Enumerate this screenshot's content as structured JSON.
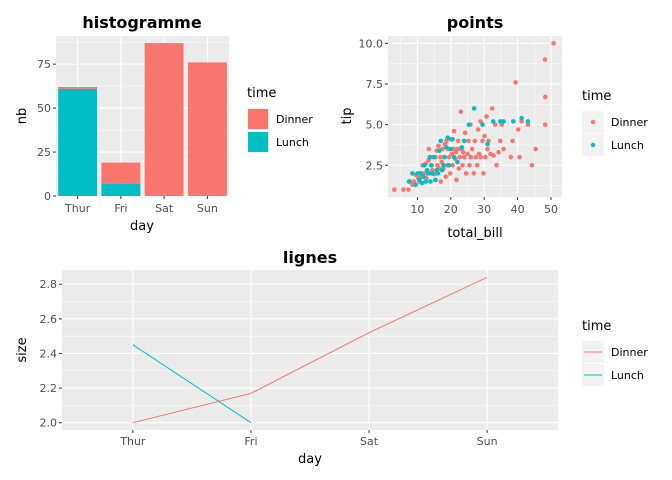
{
  "colors": {
    "Dinner": "#F8766D",
    "Lunch": "#00BFC4",
    "panel": "#EBEBEB",
    "grid": "#FFFFFF"
  },
  "chart_data": [
    {
      "type": "bar",
      "title": "histogramme",
      "xlabel": "day",
      "ylabel": "nb",
      "categories": [
        "Thur",
        "Fri",
        "Sat",
        "Sun"
      ],
      "series": [
        {
          "name": "Dinner",
          "values": [
            1,
            12,
            87,
            76
          ]
        },
        {
          "name": "Lunch",
          "values": [
            61,
            7,
            0,
            0
          ]
        }
      ],
      "stacked": true,
      "ylim": [
        0,
        91
      ],
      "yticks": [
        0,
        25,
        50,
        75
      ],
      "legend": {
        "title": "time",
        "position": "right",
        "entries": [
          "Dinner",
          "Lunch"
        ]
      }
    },
    {
      "type": "scatter",
      "title": "points",
      "xlabel": "total_bill",
      "ylabel": "tip",
      "xlim": [
        1.2,
        53.3
      ],
      "ylim": [
        0.55,
        10.45
      ],
      "xticks": [
        10,
        20,
        30,
        40,
        50
      ],
      "yticks": [
        2.5,
        5.0,
        7.5,
        10.0
      ],
      "ytick_labels": [
        "2.5",
        "5.0",
        "7.5",
        "10.0"
      ],
      "series": [
        {
          "name": "Dinner",
          "points": [
            [
              3.1,
              1.0
            ],
            [
              5.8,
              1.0
            ],
            [
              7.3,
              1.0
            ],
            [
              7.8,
              1.5
            ],
            [
              8.5,
              1.3
            ],
            [
              9.0,
              1.5
            ],
            [
              9.6,
              1.9
            ],
            [
              10.3,
              1.7
            ],
            [
              10.6,
              1.5
            ],
            [
              10.9,
              2.0
            ],
            [
              11.2,
              1.8
            ],
            [
              11.6,
              2.5
            ],
            [
              12.0,
              2.0
            ],
            [
              12.5,
              2.6
            ],
            [
              12.7,
              1.7
            ],
            [
              13.0,
              2.0
            ],
            [
              13.3,
              2.8
            ],
            [
              13.4,
              3.5
            ],
            [
              13.8,
              2.0
            ],
            [
              14.0,
              3.0
            ],
            [
              14.3,
              2.5
            ],
            [
              14.5,
              2.2
            ],
            [
              14.8,
              3.0
            ],
            [
              15.0,
              1.96
            ],
            [
              15.4,
              3.0
            ],
            [
              15.7,
              2.0
            ],
            [
              15.8,
              3.4
            ],
            [
              16.0,
              2.5
            ],
            [
              16.3,
              3.7
            ],
            [
              16.5,
              2.3
            ],
            [
              16.9,
              3.0
            ],
            [
              17.0,
              1.5
            ],
            [
              17.3,
              2.7
            ],
            [
              17.5,
              3.5
            ],
            [
              17.8,
              2.3
            ],
            [
              18.0,
              3.0
            ],
            [
              18.3,
              3.8
            ],
            [
              18.5,
              1.8
            ],
            [
              18.7,
              4.0
            ],
            [
              19.0,
              2.5
            ],
            [
              19.3,
              3.5
            ],
            [
              19.5,
              3.0
            ],
            [
              19.8,
              2.0
            ],
            [
              20.0,
              4.1
            ],
            [
              20.3,
              3.2
            ],
            [
              20.6,
              2.5
            ],
            [
              20.9,
              3.5
            ],
            [
              21.0,
              4.6
            ],
            [
              21.3,
              2.9
            ],
            [
              21.5,
              3.3
            ],
            [
              21.7,
              1.6
            ],
            [
              22.0,
              3.5
            ],
            [
              22.2,
              4.0
            ],
            [
              22.4,
              2.3
            ],
            [
              22.7,
              3.0
            ],
            [
              23.0,
              5.8
            ],
            [
              23.2,
              3.5
            ],
            [
              23.5,
              2.5
            ],
            [
              23.7,
              3.3
            ],
            [
              24.0,
              3.0
            ],
            [
              24.3,
              4.5
            ],
            [
              24.6,
              2.0
            ],
            [
              25.0,
              3.2
            ],
            [
              25.3,
              4.0
            ],
            [
              25.6,
              2.5
            ],
            [
              25.9,
              5.0
            ],
            [
              26.0,
              3.0
            ],
            [
              26.4,
              3.5
            ],
            [
              26.9,
              2.0
            ],
            [
              27.2,
              4.0
            ],
            [
              27.5,
              3.0
            ],
            [
              27.9,
              2.5
            ],
            [
              28.2,
              4.7
            ],
            [
              28.5,
              3.2
            ],
            [
              28.9,
              5.2
            ],
            [
              29.0,
              3.0
            ],
            [
              29.5,
              4.0
            ],
            [
              29.8,
              2.0
            ],
            [
              30.1,
              4.3
            ],
            [
              30.4,
              3.0
            ],
            [
              30.7,
              5.5
            ],
            [
              31.0,
              3.5
            ],
            [
              31.3,
              4.0
            ],
            [
              31.9,
              3.2
            ],
            [
              32.4,
              6.0
            ],
            [
              32.8,
              3.1
            ],
            [
              33.3,
              5.0
            ],
            [
              33.7,
              2.5
            ],
            [
              34.3,
              3.3
            ],
            [
              34.8,
              4.0
            ],
            [
              35.3,
              5.0
            ],
            [
              35.8,
              3.5
            ],
            [
              38.0,
              3.0
            ],
            [
              38.5,
              4.0
            ],
            [
              39.4,
              7.6
            ],
            [
              40.2,
              4.7
            ],
            [
              40.6,
              3.0
            ],
            [
              41.2,
              5.2
            ],
            [
              43.1,
              5.0
            ],
            [
              44.3,
              2.5
            ],
            [
              45.4,
              3.5
            ],
            [
              48.2,
              9.0
            ],
            [
              48.3,
              6.7
            ],
            [
              48.3,
              5.0
            ],
            [
              50.8,
              10.0
            ]
          ]
        },
        {
          "name": "Lunch",
          "points": [
            [
              7.5,
              1.5
            ],
            [
              8.5,
              2.0
            ],
            [
              9.5,
              1.3
            ],
            [
              10.1,
              2.0
            ],
            [
              10.6,
              1.6
            ],
            [
              11.0,
              2.0
            ],
            [
              11.4,
              1.4
            ],
            [
              11.8,
              1.8
            ],
            [
              12.1,
              2.5
            ],
            [
              12.5,
              1.5
            ],
            [
              12.9,
              2.2
            ],
            [
              13.3,
              2.0
            ],
            [
              13.7,
              3.0
            ],
            [
              13.9,
              1.5
            ],
            [
              14.1,
              2.5
            ],
            [
              14.5,
              2.0
            ],
            [
              15.0,
              3.0
            ],
            [
              15.4,
              1.6
            ],
            [
              15.8,
              2.2
            ],
            [
              16.2,
              2.0
            ],
            [
              16.6,
              3.4
            ],
            [
              17.0,
              4.0
            ],
            [
              17.4,
              2.2
            ],
            [
              17.8,
              2.5
            ],
            [
              18.2,
              3.0
            ],
            [
              18.7,
              3.6
            ],
            [
              19.1,
              4.2
            ],
            [
              19.5,
              2.5
            ],
            [
              20.0,
              3.5
            ],
            [
              20.5,
              4.1
            ],
            [
              21.0,
              3.0
            ],
            [
              22.0,
              2.7
            ],
            [
              23.3,
              3.6
            ],
            [
              24.0,
              4.0
            ],
            [
              25.4,
              5.0
            ],
            [
              27.0,
              6.0
            ],
            [
              29.5,
              5.0
            ],
            [
              31.0,
              3.8
            ],
            [
              32.7,
              5.2
            ],
            [
              34.8,
              5.2
            ],
            [
              35.8,
              5.2
            ],
            [
              38.7,
              5.2
            ],
            [
              41.2,
              5.4
            ],
            [
              43.1,
              5.2
            ]
          ]
        }
      ],
      "legend": {
        "title": "time",
        "position": "right",
        "entries": [
          "Dinner",
          "Lunch"
        ]
      }
    },
    {
      "type": "line",
      "title": "lignes",
      "xlabel": "day",
      "ylabel": "size",
      "categories": [
        "Thur",
        "Fri",
        "Sat",
        "Sun"
      ],
      "series": [
        {
          "name": "Dinner",
          "values": [
            2.0,
            2.17,
            2.52,
            2.84
          ]
        },
        {
          "name": "Lunch",
          "values": [
            2.45,
            2.0,
            null,
            null
          ]
        }
      ],
      "ylim": [
        1.958,
        2.882
      ],
      "yticks": [
        2.0,
        2.2,
        2.4,
        2.6,
        2.8
      ],
      "ytick_labels": [
        "2.0",
        "2.2",
        "2.4",
        "2.6",
        "2.8"
      ],
      "legend": {
        "title": "time",
        "position": "right",
        "entries": [
          "Dinner",
          "Lunch"
        ]
      }
    }
  ]
}
